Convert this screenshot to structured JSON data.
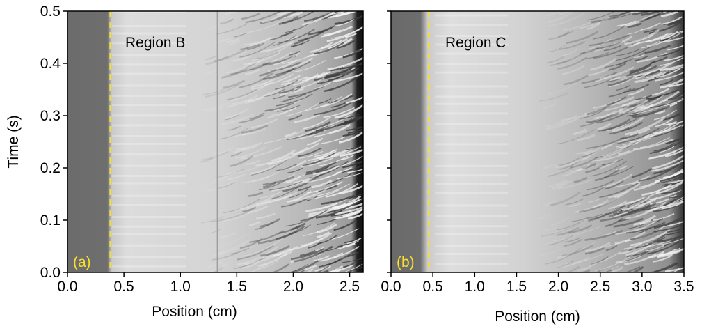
{
  "chart_data": [
    {
      "type": "image",
      "annotation": "Region B",
      "panel_label": "(a)",
      "marker_x": 0.38,
      "xlabel": "Position (cm)",
      "ylabel": "Time (s)",
      "xlim": [
        0,
        2.62
      ],
      "ylim": [
        0,
        0.5
      ],
      "xticks": [
        {
          "value": 0,
          "label": "0.0"
        },
        0.5,
        {
          "value": 1,
          "label": "1.0"
        },
        1.5,
        {
          "value": 2,
          "label": "2.0"
        },
        2.5
      ],
      "yticks": [
        {
          "value": 0,
          "label": "0.0"
        },
        0.1,
        0.2,
        0.3,
        0.4,
        0.5
      ]
    },
    {
      "type": "image",
      "annotation": "Region C",
      "panel_label": "(b)",
      "marker_x": 0.45,
      "xlabel": "Position (cm)",
      "xlim": [
        0,
        3.5
      ],
      "ylim": [
        0,
        0.5
      ],
      "xticks": [
        {
          "value": 0,
          "label": "0.0"
        },
        0.5,
        {
          "value": 1,
          "label": "1.0"
        },
        1.5,
        {
          "value": 2,
          "label": "2.0"
        },
        2.5,
        {
          "value": 3,
          "label": "3.0"
        },
        3.5
      ],
      "yticks": [
        {
          "value": 0,
          "label": "0.0"
        },
        0.1,
        0.2,
        0.3,
        0.4,
        0.5
      ]
    }
  ]
}
